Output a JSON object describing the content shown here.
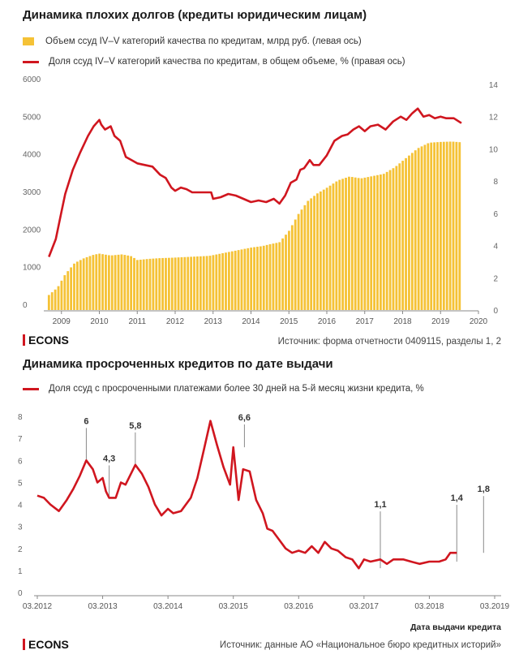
{
  "chart_data": [
    {
      "type": "bar+line",
      "title": "Динамика плохих долгов (кредиты юридическим лицам)",
      "legend": {
        "bar": "Объем ссуд IV–V категорий качества по кредитам, млрд руб. (левая ось)",
        "line": "Доля ссуд IV–V категорий качества по кредитам, в общем объеме, % (правая ось)"
      },
      "x_ticks": [
        "2009",
        "2010",
        "2011",
        "2012",
        "2013",
        "2014",
        "2015",
        "2016",
        "2017",
        "2018",
        "2019",
        "2020"
      ],
      "x_range": [
        2008.62,
        2020.0
      ],
      "y_left_ticks": [
        "0",
        "1000",
        "2000",
        "3000",
        "4000",
        "5000",
        "6000"
      ],
      "y_left_lim": [
        0,
        6000
      ],
      "y_right_ticks": [
        "0",
        "2",
        "4",
        "6",
        "8",
        "10",
        "12",
        "14"
      ],
      "y_right_lim": [
        0,
        14
      ],
      "bar_color": "#f5c236",
      "line_color": "#d0161f",
      "bar_series": {
        "name": "Объем ссуд IV–V категорий качества по кредитам, млрд руб. (левая ось)",
        "points": [
          [
            2008.67,
            400
          ],
          [
            2008.9,
            600
          ],
          [
            2009.1,
            950
          ],
          [
            2009.35,
            1250
          ],
          [
            2009.6,
            1380
          ],
          [
            2009.85,
            1470
          ],
          [
            2010.0,
            1500
          ],
          [
            2010.3,
            1450
          ],
          [
            2010.6,
            1480
          ],
          [
            2010.85,
            1430
          ],
          [
            2011.0,
            1330
          ],
          [
            2011.3,
            1360
          ],
          [
            2011.6,
            1380
          ],
          [
            2011.9,
            1390
          ],
          [
            2012.1,
            1400
          ],
          [
            2012.5,
            1420
          ],
          [
            2012.9,
            1440
          ],
          [
            2013.3,
            1520
          ],
          [
            2013.7,
            1600
          ],
          [
            2014.0,
            1660
          ],
          [
            2014.3,
            1700
          ],
          [
            2014.5,
            1750
          ],
          [
            2014.75,
            1800
          ],
          [
            2015.0,
            2100
          ],
          [
            2015.25,
            2550
          ],
          [
            2015.5,
            2900
          ],
          [
            2015.75,
            3100
          ],
          [
            2016.0,
            3250
          ],
          [
            2016.3,
            3450
          ],
          [
            2016.6,
            3550
          ],
          [
            2016.9,
            3500
          ],
          [
            2017.2,
            3560
          ],
          [
            2017.5,
            3620
          ],
          [
            2017.8,
            3800
          ],
          [
            2018.1,
            4050
          ],
          [
            2018.4,
            4300
          ],
          [
            2018.7,
            4450
          ],
          [
            2019.0,
            4470
          ],
          [
            2019.3,
            4480
          ],
          [
            2019.55,
            4460
          ]
        ]
      },
      "line_series": {
        "name": "Доля ссуд IV–V категорий качества по кредитам, в общем объеме, % (правая ось)",
        "points": [
          [
            2008.67,
            3.3
          ],
          [
            2008.85,
            4.4
          ],
          [
            2009.0,
            6.1
          ],
          [
            2009.1,
            7.2
          ],
          [
            2009.3,
            8.7
          ],
          [
            2009.5,
            9.8
          ],
          [
            2009.7,
            10.8
          ],
          [
            2009.85,
            11.4
          ],
          [
            2010.0,
            11.8
          ],
          [
            2010.05,
            11.5
          ],
          [
            2010.15,
            11.2
          ],
          [
            2010.3,
            11.4
          ],
          [
            2010.4,
            10.8
          ],
          [
            2010.55,
            10.5
          ],
          [
            2010.7,
            9.5
          ],
          [
            2010.85,
            9.3
          ],
          [
            2011.0,
            9.1
          ],
          [
            2011.2,
            9.0
          ],
          [
            2011.4,
            8.9
          ],
          [
            2011.6,
            8.4
          ],
          [
            2011.75,
            8.2
          ],
          [
            2011.9,
            7.6
          ],
          [
            2012.0,
            7.4
          ],
          [
            2012.15,
            7.6
          ],
          [
            2012.3,
            7.5
          ],
          [
            2012.45,
            7.3
          ],
          [
            2012.7,
            7.3
          ],
          [
            2012.95,
            7.3
          ],
          [
            2013.0,
            6.9
          ],
          [
            2013.2,
            7.0
          ],
          [
            2013.4,
            7.2
          ],
          [
            2013.6,
            7.1
          ],
          [
            2013.8,
            6.9
          ],
          [
            2014.0,
            6.7
          ],
          [
            2014.2,
            6.8
          ],
          [
            2014.4,
            6.7
          ],
          [
            2014.6,
            6.9
          ],
          [
            2014.75,
            6.6
          ],
          [
            2014.9,
            7.1
          ],
          [
            2015.05,
            7.9
          ],
          [
            2015.2,
            8.1
          ],
          [
            2015.3,
            8.7
          ],
          [
            2015.4,
            8.8
          ],
          [
            2015.55,
            9.3
          ],
          [
            2015.65,
            9.0
          ],
          [
            2015.8,
            9.0
          ],
          [
            2016.0,
            9.6
          ],
          [
            2016.2,
            10.5
          ],
          [
            2016.4,
            10.8
          ],
          [
            2016.55,
            10.9
          ],
          [
            2016.7,
            11.2
          ],
          [
            2016.85,
            11.4
          ],
          [
            2017.0,
            11.1
          ],
          [
            2017.15,
            11.4
          ],
          [
            2017.35,
            11.5
          ],
          [
            2017.55,
            11.2
          ],
          [
            2017.75,
            11.7
          ],
          [
            2017.95,
            12.0
          ],
          [
            2018.1,
            11.8
          ],
          [
            2018.25,
            12.2
          ],
          [
            2018.4,
            12.5
          ],
          [
            2018.55,
            12.0
          ],
          [
            2018.7,
            12.1
          ],
          [
            2018.85,
            11.9
          ],
          [
            2019.0,
            12.0
          ],
          [
            2019.15,
            11.9
          ],
          [
            2019.35,
            11.9
          ],
          [
            2019.55,
            11.6
          ]
        ]
      },
      "grid": false
    },
    {
      "type": "line",
      "title": "Динамика просроченных кредитов по дате выдачи",
      "legend": "Доля ссуд с просроченными платежами более 30 дней на 5-й месяц жизни кредита, %",
      "xlabel": "Дата выдачи кредита",
      "x_ticks": [
        "03.2012",
        "03.2013",
        "03.2014",
        "03.2015",
        "03.2016",
        "03.2017",
        "03.2018",
        "03.2019"
      ],
      "x_range": [
        2012.0,
        2019.0
      ],
      "y_ticks": [
        "0",
        "1",
        "2",
        "3",
        "4",
        "5",
        "6",
        "7",
        "8"
      ],
      "ylim": [
        0,
        8.3
      ],
      "line_color": "#d0161f",
      "annotations": [
        {
          "x": 2012.75,
          "y": 6.0,
          "label": "6"
        },
        {
          "x": 2013.1,
          "y": 4.3,
          "label": "4,3"
        },
        {
          "x": 2013.5,
          "y": 5.8,
          "label": "5,8"
        },
        {
          "x": 2015.17,
          "y": 6.6,
          "label": "6,6"
        },
        {
          "x": 2017.25,
          "y": 1.1,
          "label": "1,1"
        },
        {
          "x": 2018.42,
          "y": 1.4,
          "label": "1,4"
        },
        {
          "x": 2018.83,
          "y": 1.8,
          "label": "1,8"
        }
      ],
      "series": {
        "name": "Доля ссуд с просроченными платежами более 30 дней на 5-й месяц жизни кредита, %",
        "points": [
          [
            2012.0,
            4.4
          ],
          [
            2012.1,
            4.3
          ],
          [
            2012.2,
            4.0
          ],
          [
            2012.33,
            3.7
          ],
          [
            2012.45,
            4.2
          ],
          [
            2012.55,
            4.7
          ],
          [
            2012.65,
            5.3
          ],
          [
            2012.75,
            6.0
          ],
          [
            2012.85,
            5.6
          ],
          [
            2012.92,
            5.0
          ],
          [
            2013.0,
            5.2
          ],
          [
            2013.05,
            4.6
          ],
          [
            2013.1,
            4.3
          ],
          [
            2013.2,
            4.3
          ],
          [
            2013.28,
            5.0
          ],
          [
            2013.35,
            4.9
          ],
          [
            2013.5,
            5.8
          ],
          [
            2013.6,
            5.4
          ],
          [
            2013.7,
            4.8
          ],
          [
            2013.8,
            4.0
          ],
          [
            2013.9,
            3.5
          ],
          [
            2014.0,
            3.8
          ],
          [
            2014.08,
            3.6
          ],
          [
            2014.2,
            3.7
          ],
          [
            2014.35,
            4.3
          ],
          [
            2014.45,
            5.2
          ],
          [
            2014.55,
            6.5
          ],
          [
            2014.65,
            7.8
          ],
          [
            2014.75,
            6.7
          ],
          [
            2014.85,
            5.7
          ],
          [
            2014.95,
            4.9
          ],
          [
            2015.0,
            6.6
          ],
          [
            2015.08,
            4.2
          ],
          [
            2015.15,
            5.6
          ],
          [
            2015.25,
            5.5
          ],
          [
            2015.35,
            4.2
          ],
          [
            2015.45,
            3.6
          ],
          [
            2015.52,
            2.9
          ],
          [
            2015.6,
            2.8
          ],
          [
            2015.7,
            2.4
          ],
          [
            2015.8,
            2.0
          ],
          [
            2015.9,
            1.8
          ],
          [
            2016.0,
            1.9
          ],
          [
            2016.1,
            1.8
          ],
          [
            2016.2,
            2.1
          ],
          [
            2016.3,
            1.8
          ],
          [
            2016.4,
            2.3
          ],
          [
            2016.5,
            2.0
          ],
          [
            2016.6,
            1.9
          ],
          [
            2016.72,
            1.6
          ],
          [
            2016.82,
            1.5
          ],
          [
            2016.92,
            1.1
          ],
          [
            2017.0,
            1.5
          ],
          [
            2017.1,
            1.4
          ],
          [
            2017.25,
            1.5
          ],
          [
            2017.35,
            1.3
          ],
          [
            2017.45,
            1.5
          ],
          [
            2017.6,
            1.5
          ],
          [
            2017.72,
            1.4
          ],
          [
            2017.85,
            1.3
          ],
          [
            2018.0,
            1.4
          ],
          [
            2018.15,
            1.4
          ],
          [
            2018.25,
            1.5
          ],
          [
            2018.32,
            1.8
          ],
          [
            2018.42,
            1.8
          ]
        ]
      },
      "grid": false
    }
  ],
  "chart1_source": "Источник: форма отчетности 0409115, разделы 1, 2",
  "chart2_source": "Источник: данные АО «Национальное бюро кредитных историй»",
  "brand": "ECONS"
}
